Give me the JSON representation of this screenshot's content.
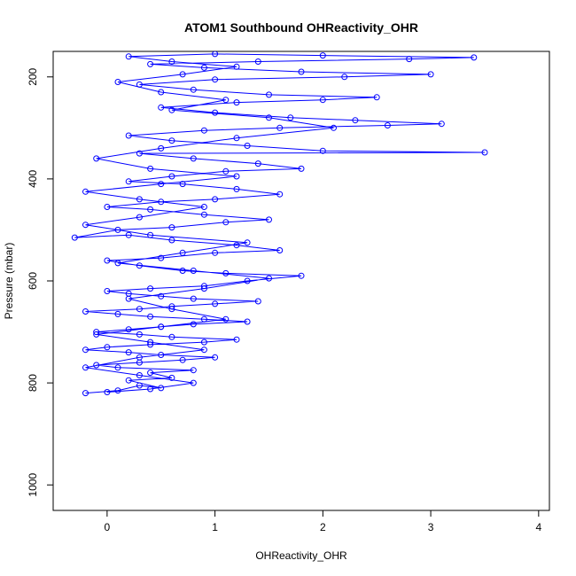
{
  "chart_data": {
    "type": "line",
    "title": "ATOM1 Southbound OHReactivity_OHR",
    "xlabel": "OHReactivity_OHR",
    "ylabel": "Pressure (mbar)",
    "xlim": [
      -0.5,
      4.1
    ],
    "ylim": [
      1050,
      150
    ],
    "y_reversed": true,
    "x_ticks": [
      0,
      1,
      2,
      3,
      4
    ],
    "x_tick_labels": [
      "0",
      "1",
      "2",
      "3",
      "4"
    ],
    "y_ticks": [
      200,
      400,
      600,
      800,
      1000
    ],
    "y_tick_labels": [
      "200",
      "400",
      "600",
      "800",
      "1000"
    ],
    "grid": false,
    "legend": "none",
    "marker": "open-circle",
    "series": [
      {
        "color": "#0000ff",
        "points": [
          [
            -0.2,
            820
          ],
          [
            0.1,
            815
          ],
          [
            0.3,
            805
          ],
          [
            0.5,
            810
          ],
          [
            0.2,
            795
          ],
          [
            0.6,
            790
          ],
          [
            0.4,
            780
          ],
          [
            0.8,
            775
          ],
          [
            0.1,
            770
          ],
          [
            -0.1,
            765
          ],
          [
            0.3,
            760
          ],
          [
            0.7,
            755
          ],
          [
            1.0,
            750
          ],
          [
            0.5,
            745
          ],
          [
            0.2,
            740
          ],
          [
            -0.2,
            735
          ],
          [
            0.0,
            730
          ],
          [
            0.4,
            725
          ],
          [
            0.9,
            720
          ],
          [
            1.2,
            715
          ],
          [
            0.6,
            710
          ],
          [
            0.3,
            705
          ],
          [
            -0.1,
            700
          ],
          [
            0.2,
            695
          ],
          [
            0.5,
            690
          ],
          [
            0.8,
            685
          ],
          [
            1.3,
            680
          ],
          [
            0.9,
            675
          ],
          [
            0.4,
            670
          ],
          [
            0.1,
            665
          ],
          [
            -0.2,
            660
          ],
          [
            0.3,
            655
          ],
          [
            0.6,
            650
          ],
          [
            1.0,
            645
          ],
          [
            1.4,
            640
          ],
          [
            0.8,
            635
          ],
          [
            0.5,
            630
          ],
          [
            0.2,
            625
          ],
          [
            0.0,
            620
          ],
          [
            0.4,
            615
          ],
          [
            0.9,
            610
          ],
          [
            1.3,
            600
          ],
          [
            1.8,
            590
          ],
          [
            1.1,
            585
          ],
          [
            0.7,
            580
          ],
          [
            0.3,
            570
          ],
          [
            0.0,
            560
          ],
          [
            0.5,
            555
          ],
          [
            1.0,
            545
          ],
          [
            1.6,
            540
          ],
          [
            1.2,
            530
          ],
          [
            0.6,
            520
          ],
          [
            0.2,
            510
          ],
          [
            -0.3,
            515
          ],
          [
            0.1,
            500
          ],
          [
            0.6,
            495
          ],
          [
            1.1,
            485
          ],
          [
            1.5,
            480
          ],
          [
            0.9,
            470
          ],
          [
            0.4,
            460
          ],
          [
            0.0,
            455
          ],
          [
            0.5,
            445
          ],
          [
            1.0,
            440
          ],
          [
            1.6,
            430
          ],
          [
            1.2,
            420
          ],
          [
            0.7,
            410
          ],
          [
            0.2,
            405
          ],
          [
            0.6,
            395
          ],
          [
            1.1,
            385
          ],
          [
            1.8,
            380
          ],
          [
            1.4,
            370
          ],
          [
            0.8,
            360
          ],
          [
            0.3,
            350
          ],
          [
            3.5,
            348
          ],
          [
            2.0,
            345
          ],
          [
            1.3,
            335
          ],
          [
            0.6,
            325
          ],
          [
            0.2,
            315
          ],
          [
            0.9,
            305
          ],
          [
            1.6,
            300
          ],
          [
            2.6,
            295
          ],
          [
            3.1,
            292
          ],
          [
            2.3,
            285
          ],
          [
            1.7,
            280
          ],
          [
            1.0,
            270
          ],
          [
            0.5,
            260
          ],
          [
            1.2,
            250
          ],
          [
            2.0,
            245
          ],
          [
            2.5,
            240
          ],
          [
            1.5,
            235
          ],
          [
            0.8,
            225
          ],
          [
            0.3,
            215
          ],
          [
            1.0,
            205
          ],
          [
            2.2,
            200
          ],
          [
            3.0,
            195
          ],
          [
            1.8,
            190
          ],
          [
            0.9,
            182
          ],
          [
            0.4,
            175
          ],
          [
            1.4,
            170
          ],
          [
            2.8,
            165
          ],
          [
            3.4,
            162
          ],
          [
            2.0,
            158
          ],
          [
            1.0,
            155
          ],
          [
            0.2,
            160
          ],
          [
            0.6,
            170
          ],
          [
            1.2,
            180
          ],
          [
            0.7,
            195
          ],
          [
            0.1,
            210
          ],
          [
            0.5,
            230
          ],
          [
            1.1,
            245
          ],
          [
            0.6,
            265
          ],
          [
            1.5,
            280
          ],
          [
            2.1,
            300
          ],
          [
            1.2,
            320
          ],
          [
            0.5,
            340
          ],
          [
            -0.1,
            360
          ],
          [
            0.4,
            380
          ],
          [
            1.2,
            395
          ],
          [
            0.5,
            410
          ],
          [
            -0.2,
            425
          ],
          [
            0.3,
            440
          ],
          [
            0.9,
            455
          ],
          [
            0.3,
            475
          ],
          [
            -0.2,
            490
          ],
          [
            0.4,
            510
          ],
          [
            1.3,
            525
          ],
          [
            0.7,
            545
          ],
          [
            0.1,
            565
          ],
          [
            0.8,
            580
          ],
          [
            1.5,
            595
          ],
          [
            0.9,
            615
          ],
          [
            0.2,
            635
          ],
          [
            0.6,
            655
          ],
          [
            1.1,
            675
          ],
          [
            0.5,
            690
          ],
          [
            -0.1,
            705
          ],
          [
            0.4,
            720
          ],
          [
            0.9,
            735
          ],
          [
            0.3,
            750
          ],
          [
            -0.2,
            770
          ],
          [
            0.3,
            785
          ],
          [
            0.8,
            800
          ],
          [
            0.4,
            812
          ],
          [
            0.0,
            818
          ]
        ]
      }
    ]
  }
}
